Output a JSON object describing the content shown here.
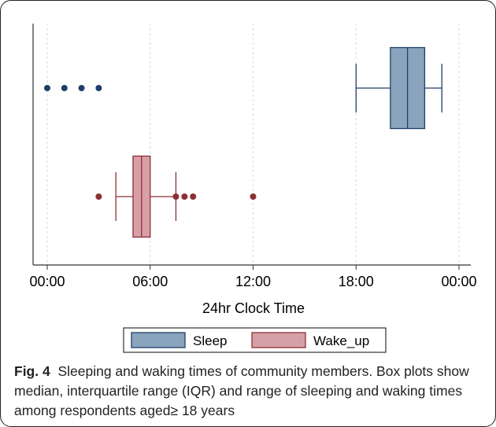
{
  "chart_data": {
    "type": "boxplot",
    "orientation": "horizontal",
    "title": "",
    "xlabel": "24hr Clock Time",
    "ylabel": "",
    "xlim": [
      0,
      24
    ],
    "x_ticks": [
      0,
      6,
      12,
      18,
      24
    ],
    "x_tick_labels": [
      "00:00",
      "06:00",
      "12:00",
      "18:00",
      "00:00"
    ],
    "grid": "vertical dashed",
    "legend_position": "bottom",
    "series": [
      {
        "name": "Sleep",
        "color": "#8aa4bd",
        "edge_color": "#1f3f66",
        "whisker_low": 18,
        "q1": 20,
        "median": 21,
        "q3": 22,
        "whisker_high": 23,
        "outliers": [
          0,
          1,
          2,
          3
        ]
      },
      {
        "name": "Wake_up",
        "color": "#d7a0a6",
        "edge_color": "#8c2f35",
        "whisker_low": 4,
        "q1": 5,
        "median": 5.5,
        "q3": 6,
        "whisker_high": 7.5,
        "outliers": [
          3,
          7.5,
          8,
          8.5,
          12
        ]
      }
    ]
  },
  "caption": {
    "label": "Fig. 4",
    "text": "Sleeping and waking times of community members. Box plots show median, interquartile range (IQR) and range of sleeping and waking times among respondents aged≥ 18 years"
  }
}
